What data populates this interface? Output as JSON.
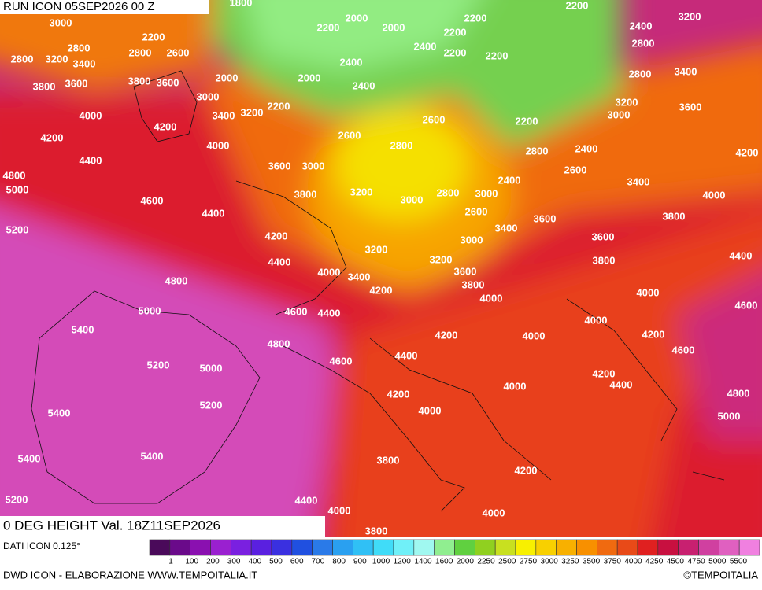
{
  "header": {
    "title": "RUN ICON 05SEP2026 00 Z"
  },
  "map": {
    "parameter": "0 DEG HEIGHT Val. 18Z11SEP2026",
    "contour_labels": [
      "1800",
      "3000",
      "2200",
      "2800",
      "2800",
      "2600",
      "2800",
      "3200",
      "3400",
      "2000",
      "3800",
      "3600",
      "3800",
      "3600",
      "3000",
      "2200",
      "3400",
      "3200",
      "4000",
      "4200",
      "4200",
      "4000",
      "4400",
      "3600",
      "3000",
      "4800",
      "5000",
      "4600",
      "3800",
      "3200",
      "3000",
      "4400",
      "5200",
      "4200",
      "3200",
      "4400",
      "4000",
      "3400",
      "4200",
      "4800",
      "5000",
      "4600",
      "4400",
      "5400",
      "4800",
      "4600",
      "4400",
      "5200",
      "5000",
      "4200",
      "4000",
      "5200",
      "5400",
      "3800",
      "5400",
      "5400",
      "4200",
      "4400",
      "5200",
      "4000",
      "4000",
      "3800",
      "2000",
      "2200",
      "2000",
      "2200",
      "2200",
      "2400",
      "2200",
      "2200",
      "2200",
      "3200",
      "2400",
      "2800",
      "2400",
      "2000",
      "2400",
      "2800",
      "3400",
      "3200",
      "3000",
      "3600",
      "2600",
      "2200",
      "2600",
      "2800",
      "2800",
      "2400",
      "4200",
      "2600",
      "2400",
      "3000",
      "2800",
      "3400",
      "4000",
      "2600",
      "3800",
      "3600",
      "3400",
      "3600",
      "3000",
      "3200",
      "3800",
      "4400",
      "3600",
      "3800",
      "4000",
      "4000",
      "4600",
      "4000",
      "4200",
      "4000",
      "4200",
      "4600",
      "4200",
      "4400",
      "4000",
      "4800",
      "5000"
    ]
  },
  "legend": {
    "source": "DATI ICON 0.125°",
    "labels": [
      "1",
      "100",
      "200",
      "300",
      "400",
      "500",
      "600",
      "700",
      "800",
      "900",
      "1000",
      "1200",
      "1400",
      "1600",
      "2000",
      "2250",
      "2500",
      "2750",
      "3000",
      "3250",
      "3500",
      "3750",
      "4000",
      "4250",
      "4500",
      "4750",
      "5000",
      "5500"
    ],
    "colors": [
      "#4a0a5a",
      "#6a0a8a",
      "#8a10b0",
      "#9a20d0",
      "#7a20e0",
      "#5a20e0",
      "#3a30e0",
      "#2050e0",
      "#2a7ae8",
      "#2aa0f0",
      "#30c0f5",
      "#40dcf8",
      "#70f0f8",
      "#a0f8f0",
      "#90ee90",
      "#60d040",
      "#90d020",
      "#c8e020",
      "#f8f000",
      "#f8d000",
      "#f8b000",
      "#f89000",
      "#f06a10",
      "#e84a18",
      "#e02020",
      "#c81040",
      "#c82070",
      "#d040a0",
      "#e060c0",
      "#f080e0"
    ]
  },
  "footer": {
    "credit": "DWD ICON - ELABORAZIONE WWW.TEMPOITALIA.IT",
    "copyright": "©TEMPOITALIA"
  }
}
